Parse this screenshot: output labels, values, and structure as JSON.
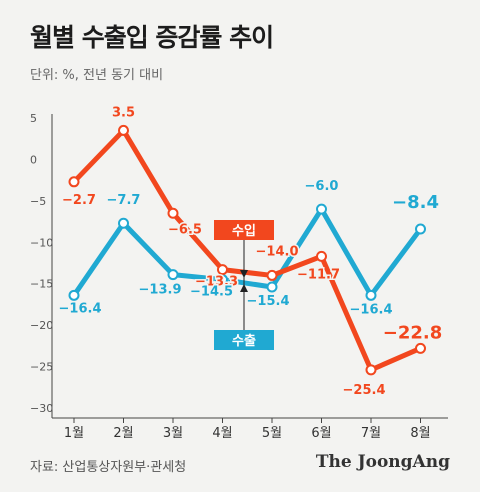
{
  "header": {
    "title": "월별 수출입 증감률 추이",
    "subtitle": "단위: %, 전년 동기 대비"
  },
  "footer": {
    "source": "자료: 산업통상자원부·관세청",
    "brand": "The JoongAng"
  },
  "colors": {
    "import": "#f2471e",
    "export": "#20a9d2",
    "background": "#f3f3f1"
  },
  "chart_data": {
    "type": "line",
    "title": "월별 수출입 증감률 추이",
    "categories": [
      "1월",
      "2월",
      "3월",
      "4월",
      "5월",
      "6월",
      "7월",
      "8월"
    ],
    "ylim": [
      -30,
      5
    ],
    "yticks": [
      5,
      0,
      -5,
      -10,
      -15,
      -20,
      -25,
      -30
    ],
    "ytick_labels": [
      "5",
      "0",
      "−5",
      "−10",
      "−15",
      "−20",
      "−25",
      "−30"
    ],
    "grid": false,
    "series": [
      {
        "name": "수입",
        "color": "#f2471e",
        "values": [
          -2.7,
          3.5,
          -6.5,
          -13.3,
          -14.0,
          -11.7,
          -25.4,
          -22.8
        ],
        "labels": [
          "−2.7",
          "3.5",
          "−6.5",
          "−13.3",
          "−14.0",
          "−11.7",
          "−25.4",
          "−22.8"
        ]
      },
      {
        "name": "수출",
        "color": "#20a9d2",
        "values": [
          -16.4,
          -7.7,
          -13.9,
          -14.5,
          -15.4,
          -6.0,
          -16.4,
          -8.4
        ],
        "labels": [
          "−16.4",
          "−7.7",
          "−13.9",
          "−14.5",
          "−15.4",
          "−6.0",
          "−16.4",
          "−8.4"
        ]
      }
    ]
  }
}
